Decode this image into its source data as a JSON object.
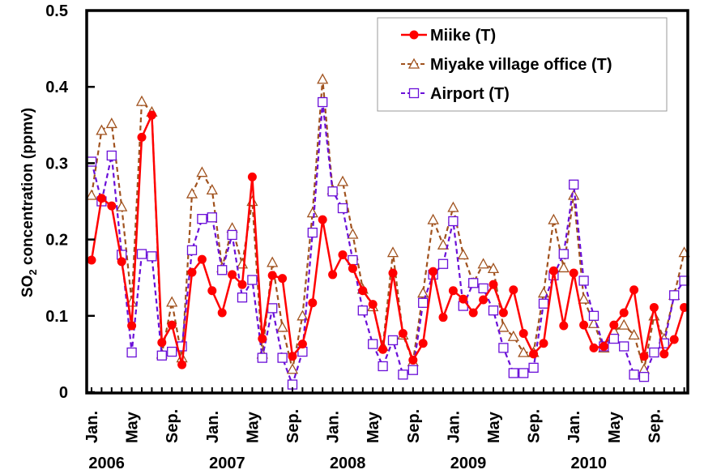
{
  "chart_data": {
    "type": "line",
    "title": "",
    "xlabel": "",
    "ylabel_main": "SO",
    "ylabel_sub": "2",
    "ylabel_rest": " concentration (ppmv)",
    "ylim": [
      0,
      0.5
    ],
    "yticks": [
      "0",
      "0.1",
      "0.2",
      "0.3",
      "0.4",
      "0.5"
    ],
    "ytick_values": [
      0,
      0.1,
      0.2,
      0.3,
      0.4,
      0.5
    ],
    "month_tick_labels": [
      {
        "index": 0,
        "label": "Jan."
      },
      {
        "index": 4,
        "label": "May"
      },
      {
        "index": 8,
        "label": "Sep."
      },
      {
        "index": 12,
        "label": "Jan."
      },
      {
        "index": 16,
        "label": "May"
      },
      {
        "index": 20,
        "label": "Sep."
      },
      {
        "index": 24,
        "label": "Jan."
      },
      {
        "index": 28,
        "label": "May"
      },
      {
        "index": 32,
        "label": "Sep."
      },
      {
        "index": 36,
        "label": "Jan."
      },
      {
        "index": 40,
        "label": "May"
      },
      {
        "index": 44,
        "label": "Sep."
      },
      {
        "index": 48,
        "label": "Jan."
      },
      {
        "index": 52,
        "label": "May"
      },
      {
        "index": 56,
        "label": "Sep."
      }
    ],
    "year_labels": [
      {
        "index": 1.5,
        "label": "2006"
      },
      {
        "index": 13.5,
        "label": "2007"
      },
      {
        "index": 25.5,
        "label": "2008"
      },
      {
        "index": 37.5,
        "label": "2009"
      },
      {
        "index": 49.5,
        "label": "2010"
      }
    ],
    "n_months": 60,
    "grid": false,
    "legend_position": "top-right",
    "series": [
      {
        "name": "Miike (T)",
        "color": "#ff0000",
        "marker": "filled-circle",
        "dash": "solid",
        "values": [
          0.173,
          0.254,
          0.244,
          0.171,
          0.087,
          0.334,
          0.363,
          0.065,
          0.088,
          0.036,
          0.157,
          0.174,
          0.133,
          0.104,
          0.154,
          0.141,
          0.282,
          0.07,
          0.153,
          0.149,
          0.047,
          0.063,
          0.117,
          0.226,
          0.154,
          0.18,
          0.162,
          0.133,
          0.115,
          0.056,
          0.156,
          0.077,
          0.042,
          0.064,
          0.158,
          0.098,
          0.133,
          0.122,
          0.104,
          0.121,
          0.141,
          0.104,
          0.134,
          0.077,
          0.05,
          0.064,
          0.159,
          0.087,
          0.156,
          0.088,
          0.058,
          0.06,
          0.088,
          0.104,
          0.134,
          0.047,
          0.111,
          0.05,
          0.069,
          0.111
        ]
      },
      {
        "name": "Miyake village office (T)",
        "color": "#a0521e",
        "marker": "open-triangle",
        "dash": "dashed",
        "values": [
          0.258,
          0.343,
          0.352,
          0.243,
          0.118,
          0.381,
          0.367,
          0.05,
          0.118,
          0.045,
          0.26,
          0.288,
          0.265,
          0.163,
          0.215,
          0.168,
          0.25,
          0.05,
          0.17,
          0.085,
          0.03,
          0.1,
          0.235,
          0.41,
          0.265,
          0.276,
          0.207,
          0.135,
          0.112,
          0.06,
          0.183,
          0.075,
          0.04,
          0.13,
          0.226,
          0.193,
          0.242,
          0.18,
          0.143,
          0.168,
          0.162,
          0.085,
          0.073,
          0.052,
          0.052,
          0.13,
          0.226,
          0.163,
          0.258,
          0.122,
          0.09,
          0.058,
          0.08,
          0.088,
          0.075,
          0.03,
          0.1,
          0.07,
          0.127,
          0.183
        ]
      },
      {
        "name": "Airport (T)",
        "color": "#6a0fd8",
        "marker": "open-square",
        "dash": "dashed",
        "values": [
          0.302,
          0.25,
          0.31,
          0.18,
          0.052,
          0.181,
          0.178,
          0.048,
          0.053,
          0.06,
          0.186,
          0.227,
          0.229,
          0.16,
          0.206,
          0.124,
          0.147,
          0.045,
          0.11,
          0.045,
          0.01,
          0.053,
          0.209,
          0.38,
          0.263,
          0.241,
          0.173,
          0.107,
          0.063,
          0.034,
          0.068,
          0.023,
          0.029,
          0.117,
          0.154,
          0.168,
          0.224,
          0.113,
          0.143,
          0.136,
          0.107,
          0.058,
          0.025,
          0.025,
          0.032,
          0.116,
          0.153,
          0.181,
          0.272,
          0.146,
          0.1,
          0.06,
          0.07,
          0.06,
          0.023,
          0.02,
          0.052,
          0.064,
          0.127,
          0.146
        ]
      }
    ]
  }
}
